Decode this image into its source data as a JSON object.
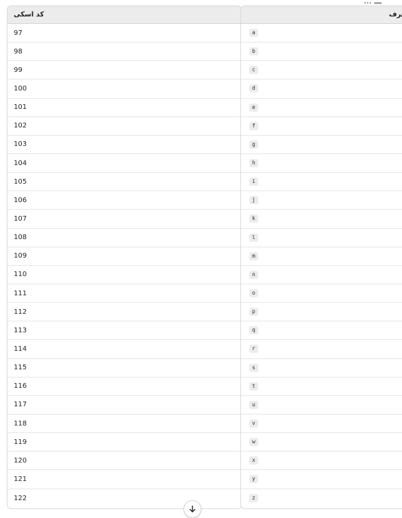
{
  "top_fragment": "ـــ ...",
  "columns": {
    "ascii_code_header": "کد اسکی",
    "letter_header": "حرف"
  },
  "rows": [
    {
      "code": "97",
      "letter": "a"
    },
    {
      "code": "98",
      "letter": "b"
    },
    {
      "code": "99",
      "letter": "c"
    },
    {
      "code": "100",
      "letter": "d"
    },
    {
      "code": "101",
      "letter": "e"
    },
    {
      "code": "102",
      "letter": "f"
    },
    {
      "code": "103",
      "letter": "g"
    },
    {
      "code": "104",
      "letter": "h"
    },
    {
      "code": "105",
      "letter": "i"
    },
    {
      "code": "106",
      "letter": "j"
    },
    {
      "code": "107",
      "letter": "k"
    },
    {
      "code": "108",
      "letter": "l"
    },
    {
      "code": "109",
      "letter": "m"
    },
    {
      "code": "110",
      "letter": "n"
    },
    {
      "code": "111",
      "letter": "o"
    },
    {
      "code": "112",
      "letter": "p"
    },
    {
      "code": "113",
      "letter": "q"
    },
    {
      "code": "114",
      "letter": "r"
    },
    {
      "code": "115",
      "letter": "s"
    },
    {
      "code": "116",
      "letter": "t"
    },
    {
      "code": "117",
      "letter": "u"
    },
    {
      "code": "118",
      "letter": "v"
    },
    {
      "code": "119",
      "letter": "w"
    },
    {
      "code": "120",
      "letter": "x"
    },
    {
      "code": "121",
      "letter": "y"
    },
    {
      "code": "122",
      "letter": "z"
    }
  ],
  "scroll_button": {
    "icon": "arrow-down-icon"
  }
}
